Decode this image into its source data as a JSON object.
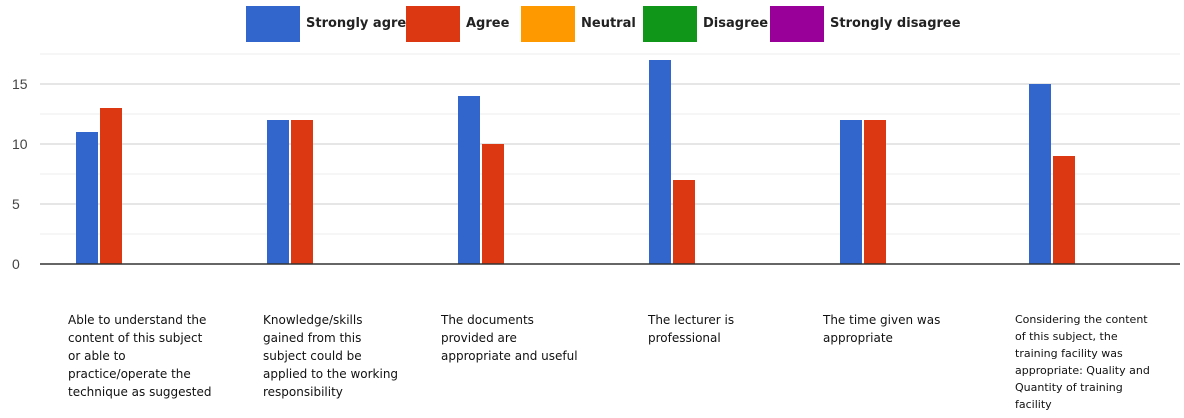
{
  "chart_data": {
    "type": "bar",
    "title": "",
    "xlabel": "",
    "ylabel": "",
    "ylim": [
      0,
      17.5
    ],
    "yticks": [
      0,
      5,
      10,
      15
    ],
    "grid": true,
    "legend_position": "top",
    "categories": [
      "Able to understand the content of this subject or able to practice/operate the technique as suggested",
      "Knowledge/skills gained from this subject could be applied to the working responsibility",
      "The documents provided are appropriate and useful",
      "The lecturer is professional",
      "The time given was appropriate",
      "Considering the content of this subject, the training facility was appropriate: Quality and Quantity of training facility"
    ],
    "series": [
      {
        "name": "Strongly agree",
        "color": "#3366cc",
        "values": [
          11,
          12,
          14,
          17,
          12,
          15
        ]
      },
      {
        "name": "Agree",
        "color": "#dc3912",
        "values": [
          13,
          12,
          10,
          7,
          12,
          9
        ]
      },
      {
        "name": "Neutral",
        "color": "#ff9900",
        "values": [
          0,
          0,
          0,
          0,
          0,
          0
        ]
      },
      {
        "name": "Disagree",
        "color": "#109618",
        "values": [
          0,
          0,
          0,
          0,
          0,
          0
        ]
      },
      {
        "name": "Strongly disagree",
        "color": "#990099",
        "values": [
          0,
          0,
          0,
          0,
          0,
          0
        ]
      }
    ]
  }
}
